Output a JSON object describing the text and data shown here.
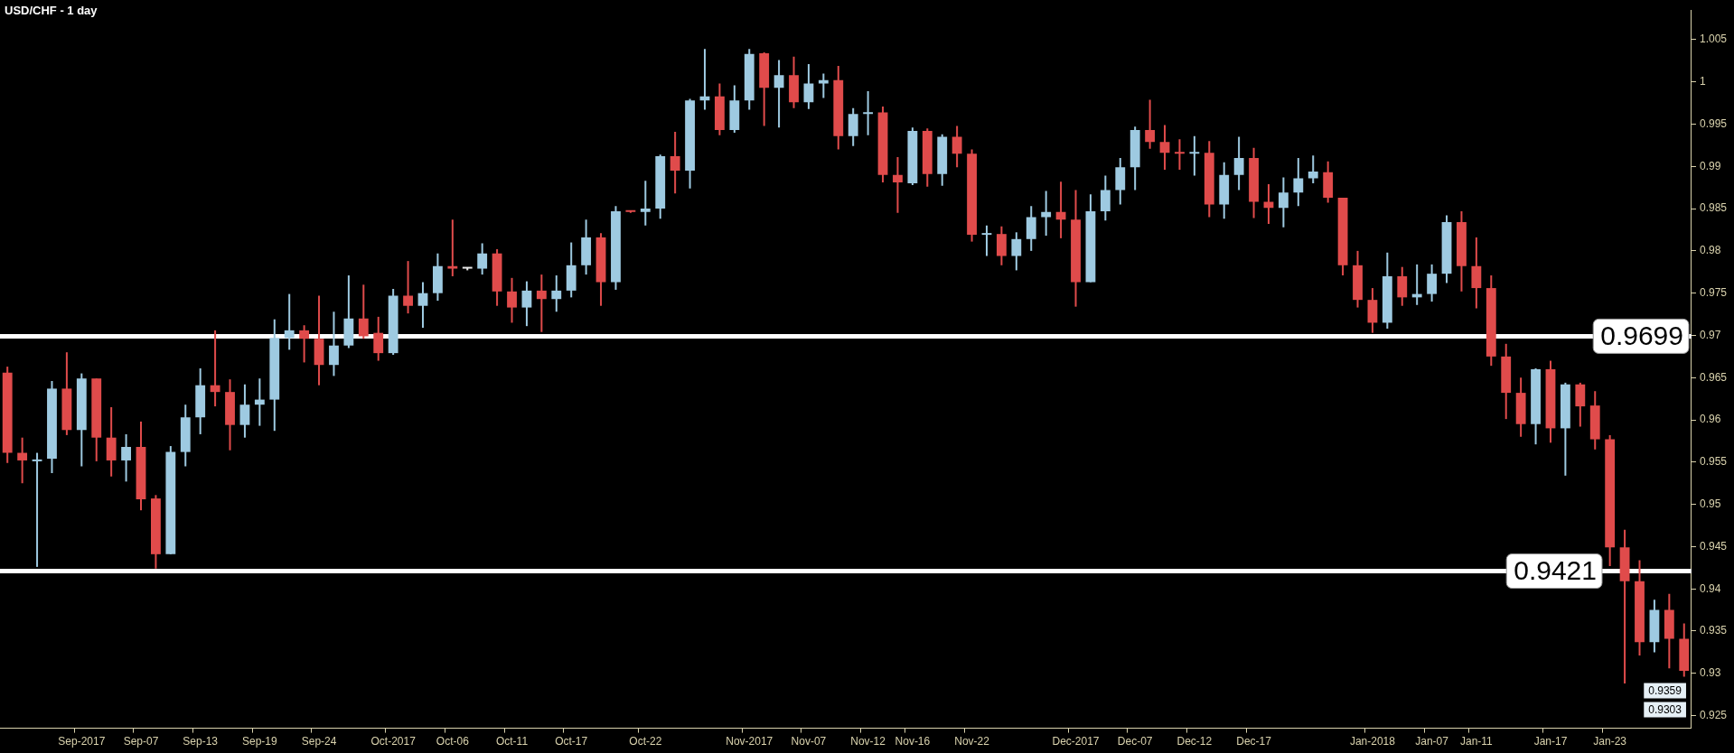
{
  "chart_data": {
    "type": "candlestick",
    "title": "USD/CHF - 1 day",
    "categories": [
      null,
      null,
      null,
      null,
      null,
      "Sep-2017",
      null,
      null,
      null,
      "Sep-07",
      null,
      null,
      null,
      "Sep-13",
      null,
      null,
      null,
      "Sep-19",
      null,
      null,
      null,
      "Sep-24",
      null,
      null,
      null,
      null,
      "Oct-2017",
      null,
      null,
      null,
      "Oct-06",
      null,
      null,
      null,
      "Oct-11",
      null,
      null,
      null,
      "Oct-17",
      null,
      null,
      null,
      null,
      "Oct-22",
      null,
      null,
      null,
      null,
      null,
      null,
      "Nov-2017",
      null,
      null,
      null,
      "Nov-07",
      null,
      null,
      null,
      "Nov-12",
      null,
      null,
      "Nov-16",
      null,
      null,
      null,
      "Nov-22",
      null,
      null,
      null,
      null,
      null,
      null,
      "Dec-2017",
      null,
      null,
      null,
      "Dec-07",
      null,
      null,
      null,
      "Dec-12",
      null,
      null,
      null,
      "Dec-17",
      null,
      null,
      null,
      null,
      null,
      null,
      null,
      "Jan-2018",
      null,
      null,
      null,
      "Jan-07",
      null,
      null,
      "Jan-11",
      null,
      null,
      null,
      null,
      "Jan-17",
      null,
      null,
      null,
      "Jan-23",
      null,
      null,
      null,
      null,
      null
    ],
    "ohlc": [
      [
        0.9656,
        0.9663,
        0.9549,
        0.9561
      ],
      [
        0.9561,
        0.9579,
        0.9525,
        0.9552
      ],
      [
        0.9551,
        0.9561,
        0.9426,
        0.9553
      ],
      [
        0.9554,
        0.9646,
        0.9537,
        0.9637
      ],
      [
        0.9637,
        0.968,
        0.9582,
        0.9588
      ],
      [
        0.9588,
        0.9655,
        0.9545,
        0.9649
      ],
      [
        0.9649,
        0.9649,
        0.9551,
        0.9579
      ],
      [
        0.9579,
        0.9615,
        0.9533,
        0.9552
      ],
      [
        0.9552,
        0.9583,
        0.9527,
        0.9568
      ],
      [
        0.9568,
        0.9598,
        0.9493,
        0.9506
      ],
      [
        0.9507,
        0.9511,
        0.9424,
        0.9441
      ],
      [
        0.9441,
        0.9569,
        0.9441,
        0.9562
      ],
      [
        0.9562,
        0.9618,
        0.9545,
        0.9603
      ],
      [
        0.9603,
        0.9661,
        0.9583,
        0.9641
      ],
      [
        0.9641,
        0.9706,
        0.9616,
        0.9633
      ],
      [
        0.9633,
        0.9648,
        0.9564,
        0.9594
      ],
      [
        0.9594,
        0.9642,
        0.9579,
        0.9618
      ],
      [
        0.9618,
        0.9649,
        0.9593,
        0.9624
      ],
      [
        0.9624,
        0.9719,
        0.9587,
        0.9697
      ],
      [
        0.9697,
        0.9749,
        0.9683,
        0.9706
      ],
      [
        0.9706,
        0.9712,
        0.9668,
        0.9696
      ],
      [
        0.9696,
        0.9747,
        0.9641,
        0.9665
      ],
      [
        0.9665,
        0.9728,
        0.9652,
        0.9688
      ],
      [
        0.9688,
        0.9771,
        0.9685,
        0.972
      ],
      [
        0.972,
        0.976,
        0.9696,
        0.9699
      ],
      [
        0.9703,
        0.9722,
        0.967,
        0.9679
      ],
      [
        0.9679,
        0.9755,
        0.9677,
        0.9747
      ],
      [
        0.9747,
        0.9788,
        0.9726,
        0.9735
      ],
      [
        0.9735,
        0.9763,
        0.9709,
        0.975
      ],
      [
        0.975,
        0.9797,
        0.9741,
        0.9782
      ],
      [
        0.9782,
        0.9837,
        0.977,
        0.9779
      ],
      [
        0.9779,
        0.978,
        0.9777,
        0.9779
      ],
      [
        0.9779,
        0.9809,
        0.9772,
        0.9797
      ],
      [
        0.9797,
        0.9802,
        0.9735,
        0.9752
      ],
      [
        0.9752,
        0.9768,
        0.9715,
        0.9733
      ],
      [
        0.9733,
        0.9764,
        0.9711,
        0.9753
      ],
      [
        0.9753,
        0.9772,
        0.9704,
        0.9743
      ],
      [
        0.9743,
        0.9771,
        0.9728,
        0.9753
      ],
      [
        0.9753,
        0.981,
        0.9745,
        0.9783
      ],
      [
        0.9783,
        0.9837,
        0.9772,
        0.9816
      ],
      [
        0.9816,
        0.9821,
        0.9735,
        0.9763
      ],
      [
        0.9763,
        0.9853,
        0.9754,
        0.9847
      ],
      [
        0.9846,
        0.9847,
        0.9845,
        0.9846
      ],
      [
        0.9846,
        0.9883,
        0.983,
        0.985
      ],
      [
        0.985,
        0.9914,
        0.9838,
        0.9912
      ],
      [
        0.9912,
        0.9941,
        0.9868,
        0.9895
      ],
      [
        0.9895,
        0.998,
        0.9874,
        0.9978
      ],
      [
        0.9978,
        1.0039,
        0.9967,
        0.9983
      ],
      [
        0.9983,
        0.9998,
        0.9937,
        0.9943
      ],
      [
        0.9943,
        0.9996,
        0.994,
        0.9978
      ],
      [
        0.9978,
        1.0039,
        0.9967,
        1.0033
      ],
      [
        1.0034,
        1.0035,
        0.9948,
        0.9993
      ],
      [
        0.9993,
        1.0026,
        0.9946,
        1.0008
      ],
      [
        1.0008,
        1.003,
        0.9969,
        0.9976
      ],
      [
        0.9976,
        1.0021,
        0.9968,
        0.9998
      ],
      [
        0.9998,
        1.001,
        0.9981,
        1.0002
      ],
      [
        1.0002,
        1.0019,
        0.992,
        0.9936
      ],
      [
        0.9936,
        0.9969,
        0.9924,
        0.9962
      ],
      [
        0.9962,
        0.9989,
        0.9937,
        0.9964
      ],
      [
        0.9964,
        0.9971,
        0.9881,
        0.989
      ],
      [
        0.989,
        0.9911,
        0.9845,
        0.9881
      ],
      [
        0.988,
        0.9946,
        0.9878,
        0.9942
      ],
      [
        0.9942,
        0.9945,
        0.9876,
        0.9891
      ],
      [
        0.9891,
        0.9938,
        0.9877,
        0.9935
      ],
      [
        0.9935,
        0.9948,
        0.9899,
        0.9915
      ],
      [
        0.9915,
        0.992,
        0.9811,
        0.9819
      ],
      [
        0.9819,
        0.983,
        0.9794,
        0.982
      ],
      [
        0.982,
        0.9829,
        0.9783,
        0.9794
      ],
      [
        0.9794,
        0.9822,
        0.9777,
        0.9814
      ],
      [
        0.9814,
        0.9853,
        0.98,
        0.984
      ],
      [
        0.984,
        0.9871,
        0.9818,
        0.9846
      ],
      [
        0.9846,
        0.9882,
        0.9815,
        0.9837
      ],
      [
        0.9837,
        0.9872,
        0.9734,
        0.9763
      ],
      [
        0.9763,
        0.9867,
        0.9763,
        0.9847
      ],
      [
        0.9847,
        0.9889,
        0.9836,
        0.9872
      ],
      [
        0.9872,
        0.991,
        0.9855,
        0.9899
      ],
      [
        0.9899,
        0.9947,
        0.9872,
        0.9943
      ],
      [
        0.9943,
        0.9979,
        0.9921,
        0.9929
      ],
      [
        0.9929,
        0.9949,
        0.9896,
        0.9916
      ],
      [
        0.9916,
        0.9932,
        0.9896,
        0.9915
      ],
      [
        0.9915,
        0.9936,
        0.9889,
        0.9916
      ],
      [
        0.9916,
        0.993,
        0.984,
        0.9855
      ],
      [
        0.9855,
        0.9905,
        0.9838,
        0.989
      ],
      [
        0.989,
        0.9935,
        0.9872,
        0.991
      ],
      [
        0.991,
        0.9922,
        0.9839,
        0.9858
      ],
      [
        0.9858,
        0.9879,
        0.9832,
        0.9851
      ],
      [
        0.9851,
        0.9887,
        0.9828,
        0.9869
      ],
      [
        0.9869,
        0.991,
        0.9853,
        0.9886
      ],
      [
        0.9886,
        0.9913,
        0.988,
        0.9894
      ],
      [
        0.9893,
        0.9906,
        0.9857,
        0.9863
      ],
      [
        0.9863,
        0.9863,
        0.9771,
        0.9783
      ],
      [
        0.9783,
        0.98,
        0.9733,
        0.9742
      ],
      [
        0.9742,
        0.9756,
        0.9703,
        0.9715
      ],
      [
        0.9715,
        0.9798,
        0.9708,
        0.977
      ],
      [
        0.977,
        0.9781,
        0.9735,
        0.9745
      ],
      [
        0.9745,
        0.9784,
        0.9736,
        0.9749
      ],
      [
        0.9749,
        0.9784,
        0.974,
        0.9773
      ],
      [
        0.9773,
        0.9842,
        0.9762,
        0.9834
      ],
      [
        0.9834,
        0.9847,
        0.9752,
        0.9782
      ],
      [
        0.9782,
        0.9816,
        0.9732,
        0.9756
      ],
      [
        0.9756,
        0.9771,
        0.9664,
        0.9675
      ],
      [
        0.9675,
        0.969,
        0.9601,
        0.9632
      ],
      [
        0.9632,
        0.965,
        0.958,
        0.9595
      ],
      [
        0.9595,
        0.9661,
        0.9571,
        0.966
      ],
      [
        0.966,
        0.967,
        0.9573,
        0.959
      ],
      [
        0.959,
        0.9644,
        0.9534,
        0.9642
      ],
      [
        0.9642,
        0.9644,
        0.9592,
        0.9616
      ],
      [
        0.9617,
        0.9634,
        0.9565,
        0.9577
      ],
      [
        0.9577,
        0.9582,
        0.9427,
        0.9449
      ],
      [
        0.9449,
        0.947,
        0.9288,
        0.9409
      ],
      [
        0.9409,
        0.9434,
        0.9321,
        0.9337
      ],
      [
        0.9337,
        0.9387,
        0.9325,
        0.9375
      ],
      [
        0.9375,
        0.9394,
        0.9306,
        0.9341
      ],
      [
        0.9341,
        0.9359,
        0.9296,
        0.9303
      ]
    ],
    "colors": [
      "#e04b4b",
      "#e04b4b",
      "#9ecae1",
      "#9ecae1",
      "#e04b4b",
      "#9ecae1",
      "#e04b4b",
      "#e04b4b",
      "#9ecae1",
      "#e04b4b",
      "#e04b4b",
      "#9ecae1",
      "#9ecae1",
      "#9ecae1",
      "#e04b4b",
      "#e04b4b",
      "#9ecae1",
      "#9ecae1",
      "#9ecae1",
      "#9ecae1",
      "#e04b4b",
      "#e04b4b",
      "#9ecae1",
      "#9ecae1",
      "#e04b4b",
      "#e04b4b",
      "#9ecae1",
      "#e04b4b",
      "#9ecae1",
      "#9ecae1",
      "#e04b4b",
      "#e8e8e8",
      "#9ecae1",
      "#e04b4b",
      "#e04b4b",
      "#9ecae1",
      "#e04b4b",
      "#9ecae1",
      "#9ecae1",
      "#9ecae1",
      "#e04b4b",
      "#9ecae1",
      "#e04b4b",
      "#9ecae1",
      "#9ecae1",
      "#e04b4b",
      "#9ecae1",
      "#9ecae1",
      "#e04b4b",
      "#9ecae1",
      "#9ecae1",
      "#e04b4b",
      "#9ecae1",
      "#e04b4b",
      "#9ecae1",
      "#9ecae1",
      "#e04b4b",
      "#9ecae1",
      "#9ecae1",
      "#e04b4b",
      "#e04b4b",
      "#9ecae1",
      "#e04b4b",
      "#9ecae1",
      "#e04b4b",
      "#e04b4b",
      "#9ecae1",
      "#e04b4b",
      "#9ecae1",
      "#9ecae1",
      "#9ecae1",
      "#e04b4b",
      "#e04b4b",
      "#9ecae1",
      "#9ecae1",
      "#9ecae1",
      "#9ecae1",
      "#e04b4b",
      "#e04b4b",
      "#e04b4b",
      "#9ecae1",
      "#e04b4b",
      "#9ecae1",
      "#9ecae1",
      "#e04b4b",
      "#e04b4b",
      "#9ecae1",
      "#9ecae1",
      "#9ecae1",
      "#e04b4b",
      "#e04b4b",
      "#e04b4b",
      "#e04b4b",
      "#9ecae1",
      "#e04b4b",
      "#9ecae1",
      "#9ecae1",
      "#9ecae1",
      "#e04b4b",
      "#e04b4b",
      "#e04b4b",
      "#e04b4b",
      "#e04b4b",
      "#9ecae1",
      "#e04b4b",
      "#9ecae1",
      "#e04b4b",
      "#e04b4b",
      "#e04b4b",
      "#e04b4b",
      "#e04b4b",
      "#9ecae1",
      "#e04b4b",
      "#e04b4b"
    ],
    "ylim": [
      0.9235,
      1.0085
    ],
    "yticks": [
      0.925,
      0.93,
      0.935,
      0.94,
      0.945,
      0.95,
      0.955,
      0.96,
      0.965,
      0.97,
      0.975,
      0.98,
      0.985,
      0.99,
      0.995,
      1,
      1.005
    ],
    "ref_lines": [
      {
        "axis": "y",
        "value": 0.9699,
        "label": "0.9699",
        "color": "#ffffff"
      },
      {
        "axis": "y",
        "value": 0.9421,
        "label": "0.9421",
        "color": "#ffffff"
      }
    ],
    "annotations": [
      "0.9359",
      "0.9303"
    ]
  }
}
